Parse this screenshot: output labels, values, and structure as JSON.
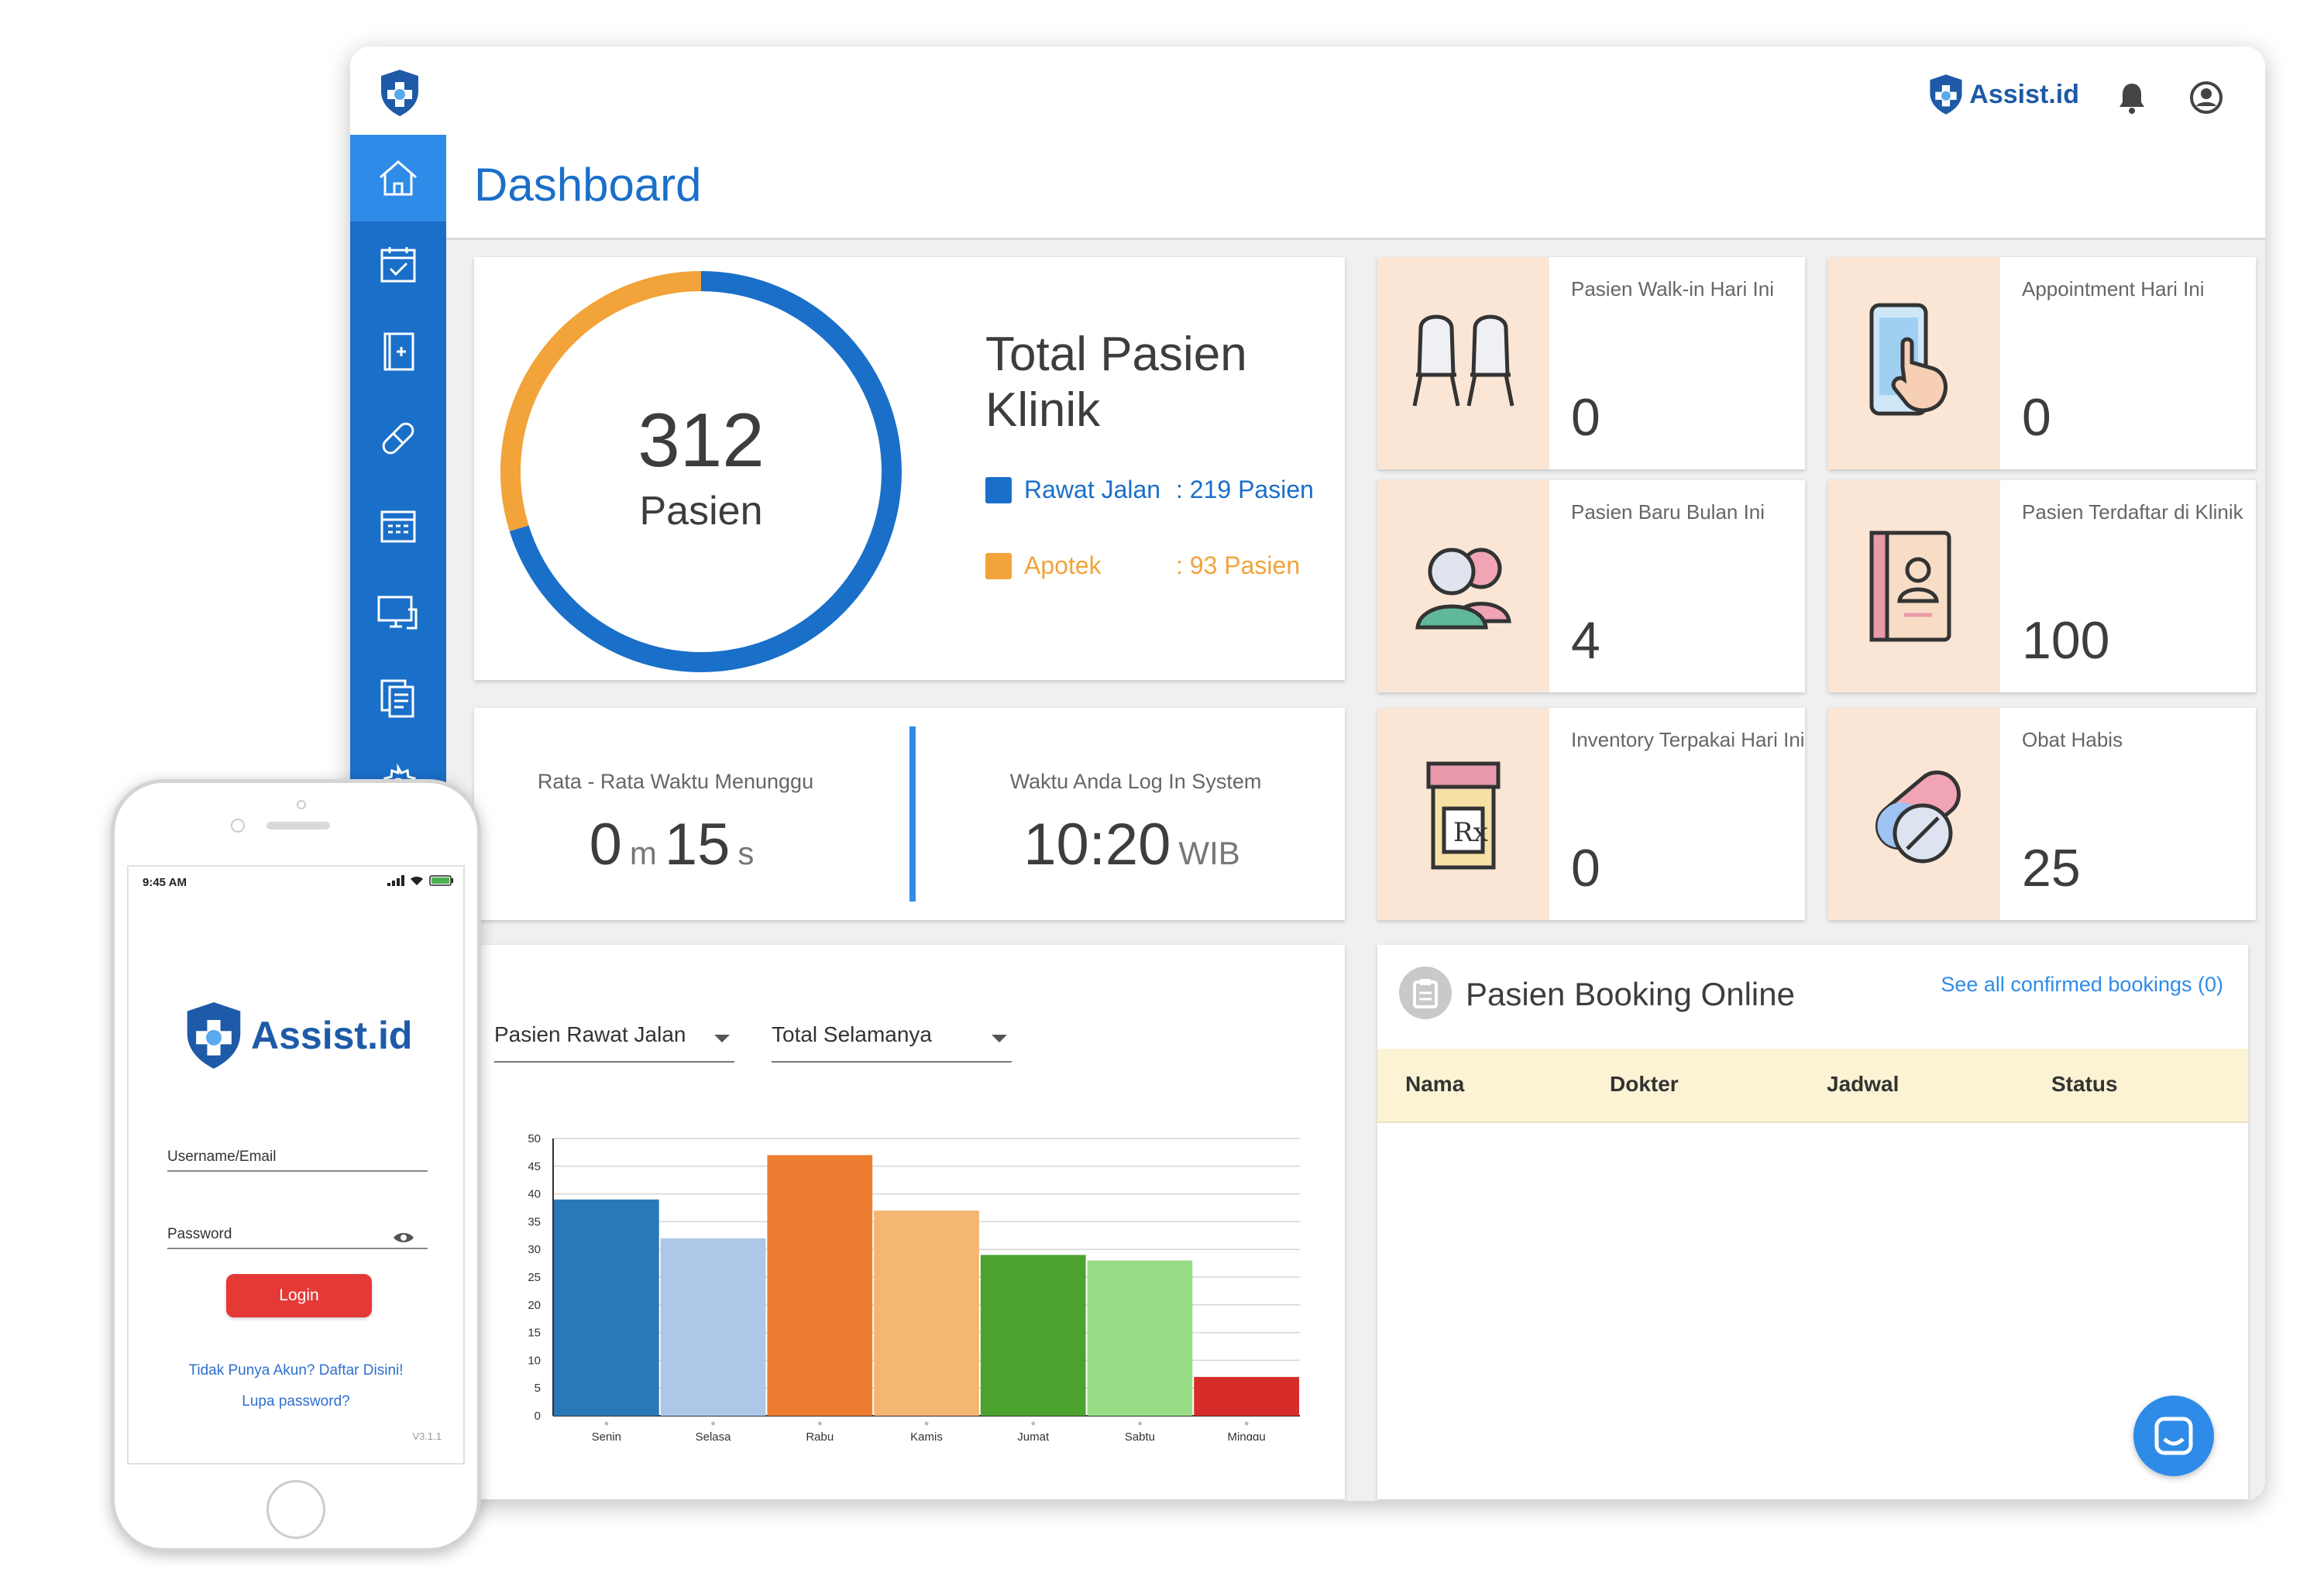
{
  "app": {
    "brand": "Assist.id",
    "page_title": "Dashboard"
  },
  "sidebar": {
    "items": [
      {
        "icon": "home-icon",
        "active": true
      },
      {
        "icon": "calendar-check-icon"
      },
      {
        "icon": "medical-book-icon"
      },
      {
        "icon": "bandage-icon"
      },
      {
        "icon": "schedule-icon"
      },
      {
        "icon": "monitor-icon"
      },
      {
        "icon": "documents-icon"
      },
      {
        "icon": "gear-icon"
      }
    ]
  },
  "total_patients": {
    "number": "312",
    "unit": "Pasien",
    "title": "Total Pasien Klinik",
    "legend": [
      {
        "name": "Rawat Jalan",
        "value_text": ": 219 Pasien",
        "value": 219,
        "color": "#1a6fc9"
      },
      {
        "name": "Apotek",
        "value_text": ": 93 Pasien",
        "value": 93,
        "color": "#f2a33a"
      }
    ]
  },
  "stats": [
    {
      "label": "Pasien Walk-in Hari Ini",
      "value": "0",
      "icon": "chairs-icon"
    },
    {
      "label": "Appointment Hari Ini",
      "value": "0",
      "icon": "phone-tap-icon"
    },
    {
      "label": "Pasien Baru Bulan Ini",
      "value": "4",
      "icon": "people-icon"
    },
    {
      "label": "Pasien Terdaftar di Klinik",
      "value": "100",
      "icon": "address-book-icon"
    },
    {
      "label": "Inventory Terpakai Hari Ini",
      "value": "0",
      "icon": "rx-bottle-icon"
    },
    {
      "label": "Obat Habis",
      "value": "25",
      "icon": "pill-icon"
    }
  ],
  "wait": {
    "avg_label": "Rata - Rata Waktu Menunggu",
    "avg_min": "0",
    "avg_min_unit": "m",
    "avg_sec": "15",
    "avg_sec_unit": "s",
    "login_label": "Waktu Anda Log In System",
    "login_time": "10:20",
    "login_tz": "WIB"
  },
  "chart_filters": {
    "type_select": "Pasien Rawat Jalan",
    "range_select": "Total Selamanya"
  },
  "chart_data": {
    "type": "bar",
    "categories": [
      "Senin",
      "Selasa",
      "Rabu",
      "Kamis",
      "Jumat",
      "Sabtu",
      "Minggu"
    ],
    "values": [
      39,
      32,
      47,
      37,
      29,
      28,
      7
    ],
    "colors": [
      "#2a78b8",
      "#aec7e8",
      "#ef7d31",
      "#f4b673",
      "#4ca22f",
      "#98dc86",
      "#d62d28"
    ],
    "yticks": [
      0,
      5,
      10,
      15,
      20,
      25,
      30,
      35,
      40,
      45,
      50
    ],
    "ylim": [
      0,
      50
    ],
    "grid": true,
    "xlabel": "",
    "ylabel": "",
    "title": ""
  },
  "booking": {
    "title": "Pasien Booking Online",
    "link": "See all confirmed bookings (0)",
    "columns": [
      "Nama",
      "Dokter",
      "Jadwal",
      "Status"
    ]
  },
  "phone": {
    "time": "9:45 AM",
    "brand": "Assist.id",
    "username_placeholder": "Username/Email",
    "password_placeholder": "Password",
    "login_label": "Login",
    "register_link": "Tidak Punya Akun? Daftar Disini!",
    "forgot_link": "Lupa password?",
    "version": "V3.1.1"
  }
}
